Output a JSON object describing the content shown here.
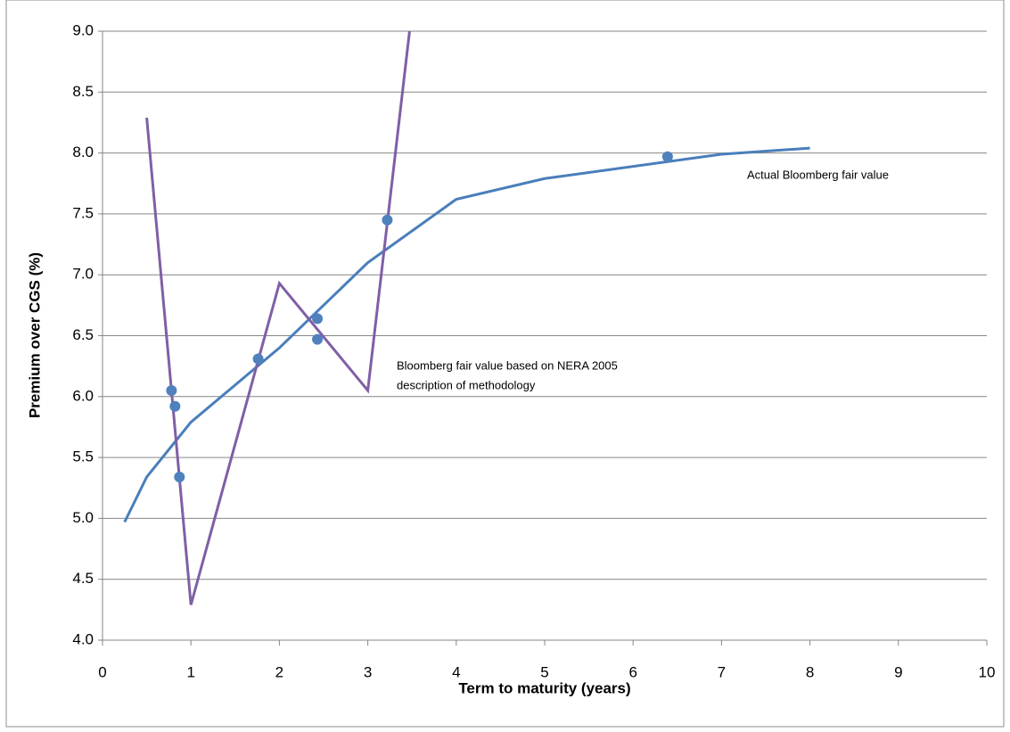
{
  "chart_data": {
    "type": "line",
    "xlabel": "Term to maturity (years)",
    "ylabel": "Premium over CGS (%)",
    "xlim": [
      0,
      10
    ],
    "xticks": [
      0,
      1,
      2,
      3,
      4,
      5,
      6,
      7,
      8,
      9,
      10
    ],
    "ylim": [
      4,
      9
    ],
    "yticks": [
      {
        "value": 4,
        "label": "4.0"
      },
      {
        "value": 4.5,
        "label": "4.5"
      },
      {
        "value": 5,
        "label": "5.0"
      },
      {
        "value": 5.5,
        "label": "5.5"
      },
      {
        "value": 6,
        "label": "6.0"
      },
      {
        "value": 6.5,
        "label": "6.5"
      },
      {
        "value": 7,
        "label": "7.0"
      },
      {
        "value": 7.5,
        "label": "7.5"
      },
      {
        "value": 8,
        "label": "8.0"
      },
      {
        "value": 8.5,
        "label": "8.5"
      },
      {
        "value": 9,
        "label": "9.0"
      }
    ],
    "grid": true,
    "series": [
      {
        "mode": "lines",
        "color": "#4a7ebb",
        "x": [
          0.25,
          0.5,
          1,
          2,
          3,
          4,
          5,
          7,
          8
        ],
        "values": [
          4.97,
          5.34,
          5.79,
          6.4,
          7.1,
          7.62,
          7.79,
          7.99,
          8.04
        ]
      },
      {
        "mode": "lines",
        "color": "#7f5fa5",
        "x": [
          0.5,
          1,
          2,
          3,
          4
        ],
        "values": [
          8.29,
          4.29,
          6.93,
          6.05,
          12.3
        ]
      },
      {
        "mode": "markers",
        "color": "#4f81bd",
        "x": [
          0.78,
          0.82,
          0.87,
          1.76,
          2.43,
          2.43,
          3.22,
          6.39
        ],
        "values": [
          6.05,
          5.92,
          5.34,
          6.31,
          6.64,
          6.47,
          7.45,
          7.97
        ]
      }
    ],
    "annotations": [
      "Actual Bloomberg  fair value",
      "Bloomberg  fair value based on NERA 2005",
      "description of methodology"
    ]
  }
}
